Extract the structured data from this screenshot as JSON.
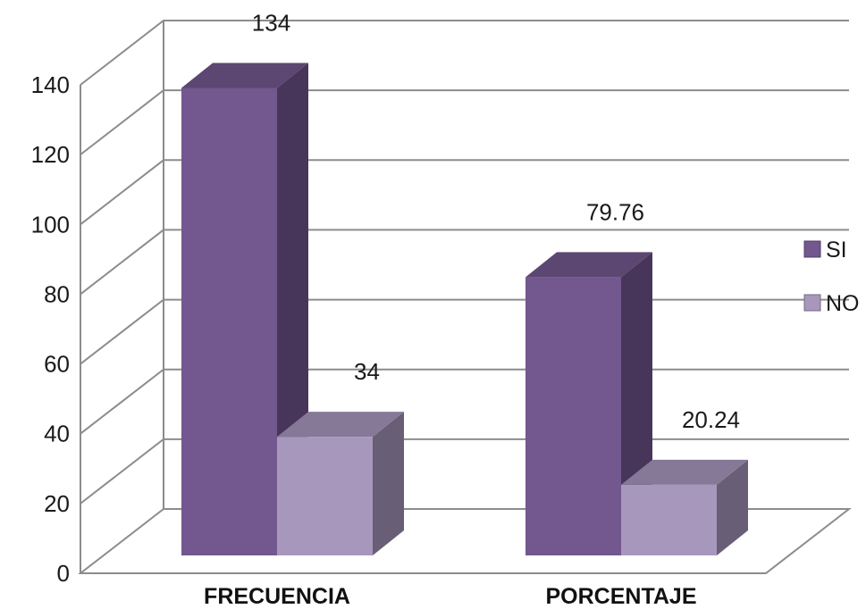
{
  "chart_data": {
    "type": "bar",
    "title": "",
    "xlabel": "",
    "ylabel": "",
    "categories": [
      "FRECUENCIA",
      "PORCENTAJE"
    ],
    "series": [
      {
        "name": "SI",
        "values": [
          134,
          79.76
        ],
        "labels": [
          "134",
          "79.76"
        ],
        "color": "#73578f"
      },
      {
        "name": "NO",
        "values": [
          34,
          20.24
        ],
        "labels": [
          "34",
          "20.24"
        ],
        "color": "#a897bd"
      }
    ],
    "ylim": [
      0,
      140
    ],
    "yticks": [
      "0",
      "20",
      "40",
      "60",
      "80",
      "100",
      "120",
      "140"
    ],
    "grid": true,
    "legend": "right",
    "style": "3d-clustered-column"
  }
}
